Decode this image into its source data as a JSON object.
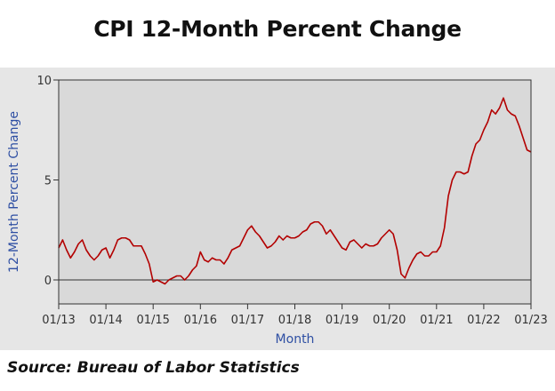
{
  "chart_data": {
    "type": "line",
    "title": "CPI 12-Month Percent Change",
    "xlabel": "Month",
    "ylabel": "12-Month Percent Change",
    "x_ticks": [
      "01/13",
      "01/14",
      "01/15",
      "01/16",
      "01/17",
      "01/18",
      "01/19",
      "01/20",
      "01/21",
      "01/22",
      "01/23"
    ],
    "y_ticks": [
      0,
      5,
      10
    ],
    "xlim": [
      "01/13",
      "01/23"
    ],
    "ylim": [
      -1.2,
      10
    ],
    "grid": false,
    "series": [
      {
        "color": "#b30000",
        "x": [
          "2013-01",
          "2013-02",
          "2013-03",
          "2013-04",
          "2013-05",
          "2013-06",
          "2013-07",
          "2013-08",
          "2013-09",
          "2013-10",
          "2013-11",
          "2013-12",
          "2014-01",
          "2014-02",
          "2014-03",
          "2014-04",
          "2014-05",
          "2014-06",
          "2014-07",
          "2014-08",
          "2014-09",
          "2014-10",
          "2014-11",
          "2014-12",
          "2015-01",
          "2015-02",
          "2015-03",
          "2015-04",
          "2015-05",
          "2015-06",
          "2015-07",
          "2015-08",
          "2015-09",
          "2015-10",
          "2015-11",
          "2015-12",
          "2016-01",
          "2016-02",
          "2016-03",
          "2016-04",
          "2016-05",
          "2016-06",
          "2016-07",
          "2016-08",
          "2016-09",
          "2016-10",
          "2016-11",
          "2016-12",
          "2017-01",
          "2017-02",
          "2017-03",
          "2017-04",
          "2017-05",
          "2017-06",
          "2017-07",
          "2017-08",
          "2017-09",
          "2017-10",
          "2017-11",
          "2017-12",
          "2018-01",
          "2018-02",
          "2018-03",
          "2018-04",
          "2018-05",
          "2018-06",
          "2018-07",
          "2018-08",
          "2018-09",
          "2018-10",
          "2018-11",
          "2018-12",
          "2019-01",
          "2019-02",
          "2019-03",
          "2019-04",
          "2019-05",
          "2019-06",
          "2019-07",
          "2019-08",
          "2019-09",
          "2019-10",
          "2019-11",
          "2019-12",
          "2020-01",
          "2020-02",
          "2020-03",
          "2020-04",
          "2020-05",
          "2020-06",
          "2020-07",
          "2020-08",
          "2020-09",
          "2020-10",
          "2020-11",
          "2020-12",
          "2021-01",
          "2021-02",
          "2021-03",
          "2021-04",
          "2021-05",
          "2021-06",
          "2021-07",
          "2021-08",
          "2021-09",
          "2021-10",
          "2021-11",
          "2021-12",
          "2022-01",
          "2022-02",
          "2022-03",
          "2022-04",
          "2022-05",
          "2022-06",
          "2022-07",
          "2022-08",
          "2022-09",
          "2022-10",
          "2022-11",
          "2022-12",
          "2023-01"
        ],
        "values": [
          1.6,
          2.0,
          1.5,
          1.1,
          1.4,
          1.8,
          2.0,
          1.5,
          1.2,
          1.0,
          1.2,
          1.5,
          1.6,
          1.1,
          1.5,
          2.0,
          2.1,
          2.1,
          2.0,
          1.7,
          1.7,
          1.7,
          1.3,
          0.8,
          -0.1,
          0.0,
          -0.1,
          -0.2,
          0.0,
          0.1,
          0.2,
          0.2,
          0.0,
          0.2,
          0.5,
          0.7,
          1.4,
          1.0,
          0.9,
          1.1,
          1.0,
          1.0,
          0.8,
          1.1,
          1.5,
          1.6,
          1.7,
          2.1,
          2.5,
          2.7,
          2.4,
          2.2,
          1.9,
          1.6,
          1.7,
          1.9,
          2.2,
          2.0,
          2.2,
          2.1,
          2.1,
          2.2,
          2.4,
          2.5,
          2.8,
          2.9,
          2.9,
          2.7,
          2.3,
          2.5,
          2.2,
          1.9,
          1.6,
          1.5,
          1.9,
          2.0,
          1.8,
          1.6,
          1.8,
          1.7,
          1.7,
          1.8,
          2.1,
          2.3,
          2.5,
          2.3,
          1.5,
          0.3,
          0.1,
          0.6,
          1.0,
          1.3,
          1.4,
          1.2,
          1.2,
          1.4,
          1.4,
          1.7,
          2.6,
          4.2,
          5.0,
          5.4,
          5.4,
          5.3,
          5.4,
          6.2,
          6.8,
          7.0,
          7.5,
          7.9,
          8.5,
          8.3,
          8.6,
          9.1,
          8.5,
          8.3,
          8.2,
          7.7,
          7.1,
          6.5,
          6.4
        ]
      }
    ]
  },
  "source_note": "Source: Bureau of Labor Statistics"
}
